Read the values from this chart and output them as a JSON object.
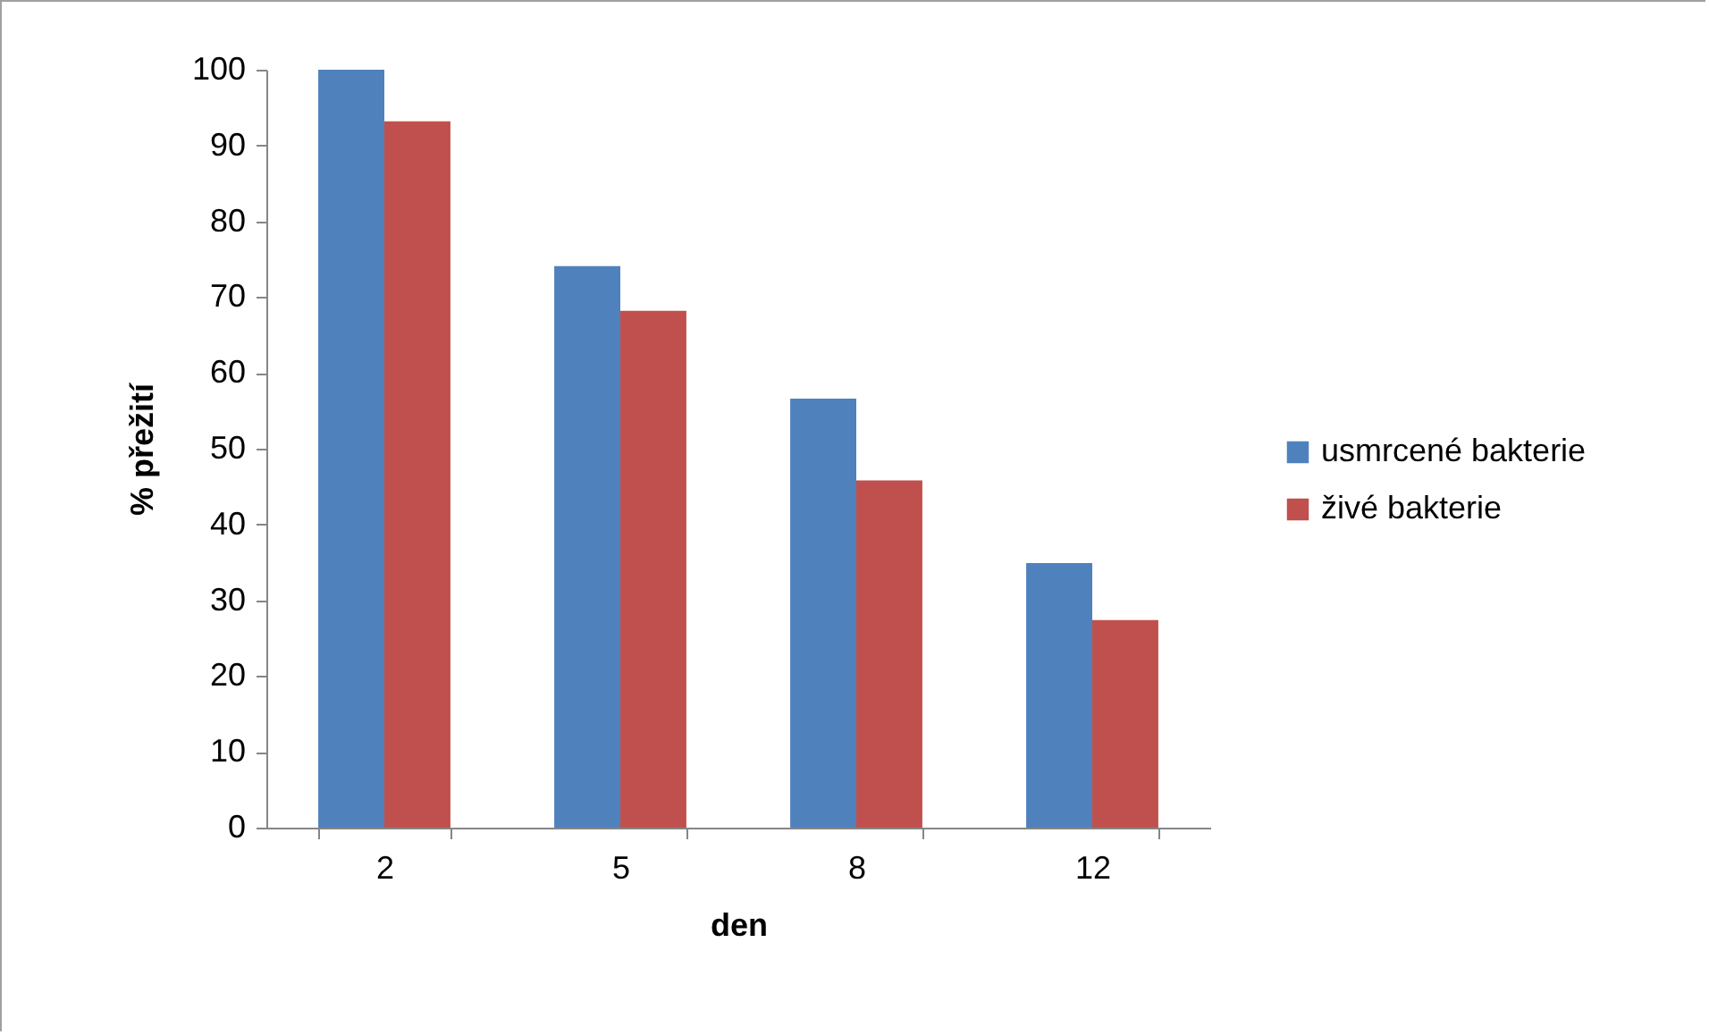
{
  "chart_data": {
    "type": "bar",
    "categories": [
      "2",
      "5",
      "8",
      "12"
    ],
    "xlabel": "den",
    "ylabel": "% přežití",
    "series": [
      {
        "name": "usmrcené bakterie",
        "color": "#4f81bd",
        "values": [
          100,
          74.1,
          56.6,
          34.9
        ]
      },
      {
        "name": "živé bakterie",
        "color": "#c0504d",
        "values": [
          93.2,
          68.2,
          45.8,
          27.4
        ]
      }
    ],
    "ylim": [
      0,
      100
    ],
    "yticks": [
      0,
      10,
      20,
      30,
      40,
      50,
      60,
      70,
      80,
      90,
      100
    ],
    "legend": "right"
  }
}
